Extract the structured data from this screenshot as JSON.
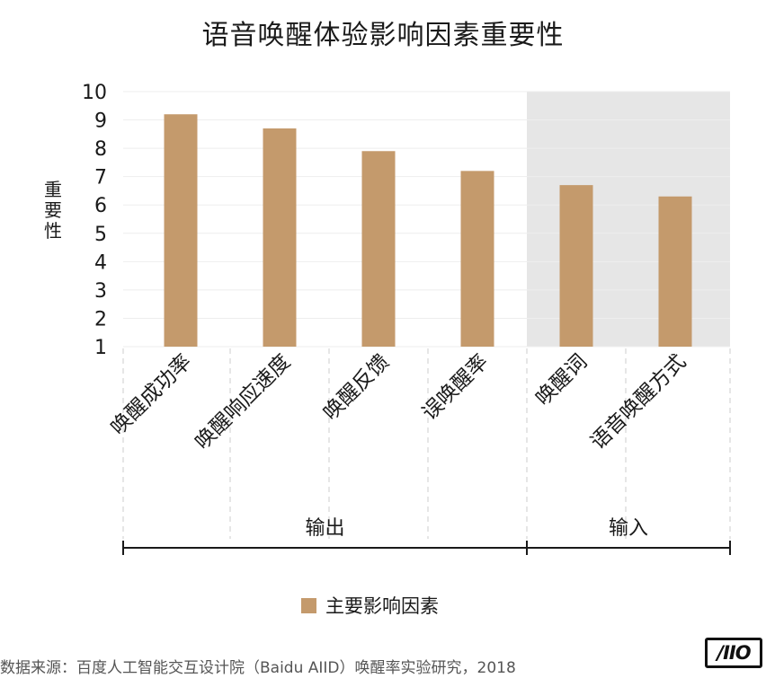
{
  "chart_data": {
    "type": "bar",
    "title": "语音唤醒体验影响因素重要性",
    "ylabel": "重要性",
    "ylim": [
      1,
      10
    ],
    "yticks": [
      1,
      2,
      3,
      4,
      5,
      6,
      7,
      8,
      9,
      10
    ],
    "categories": [
      "唤醒成功率",
      "唤醒响应速度",
      "唤醒反馈",
      "误唤醒率",
      "唤醒词",
      "语音唤醒方式"
    ],
    "series": [
      {
        "name": "主要影响因素",
        "values": [
          9.2,
          8.7,
          7.9,
          7.2,
          6.7,
          6.3
        ]
      }
    ],
    "groups": [
      {
        "label": "输出",
        "start": 0,
        "end": 3,
        "shaded": false
      },
      {
        "label": "输入",
        "start": 4,
        "end": 5,
        "shaded": true
      }
    ],
    "legend_position": "bottom",
    "grid": true
  },
  "colors": {
    "bar": "#c49a6c",
    "shade": "#e6e6e6",
    "grid": "#eeeeee"
  },
  "source": "数据来源：百度人工智能交互设计院（Baidu AIID）唤醒率实验研究，2018",
  "logo": "/IIO"
}
